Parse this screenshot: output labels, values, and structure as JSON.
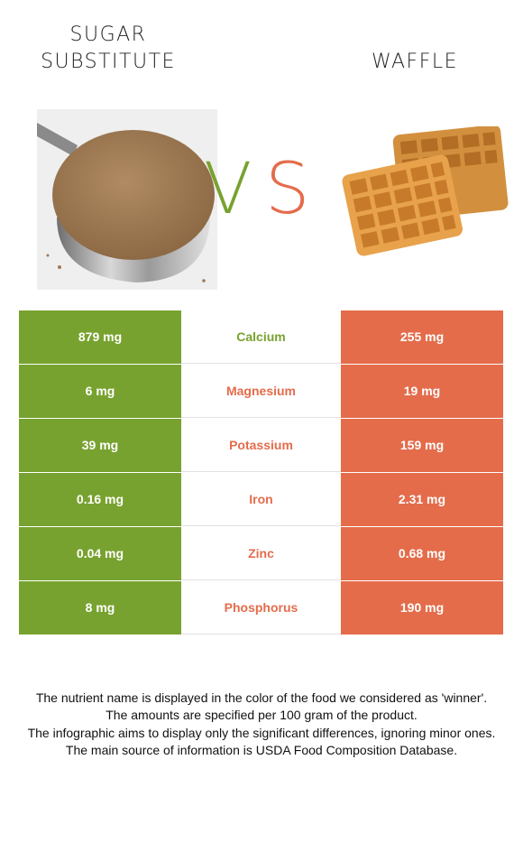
{
  "left_food": {
    "title_line1": "SUGAR",
    "title_line2": "SUBSTITUTE"
  },
  "right_food": {
    "title": "WAFFLE"
  },
  "vs": {
    "v": "V",
    "s": "S"
  },
  "colors": {
    "left_winner": "#78a22f",
    "right_winner": "#e46c4b"
  },
  "nutrients": [
    {
      "name": "Calcium",
      "left": "879 mg",
      "right": "255 mg",
      "winner": "left"
    },
    {
      "name": "Magnesium",
      "left": "6 mg",
      "right": "19 mg",
      "winner": "right"
    },
    {
      "name": "Potassium",
      "left": "39 mg",
      "right": "159 mg",
      "winner": "right"
    },
    {
      "name": "Iron",
      "left": "0.16 mg",
      "right": "2.31 mg",
      "winner": "right"
    },
    {
      "name": "Zinc",
      "left": "0.04 mg",
      "right": "0.68 mg",
      "winner": "right"
    },
    {
      "name": "Phosphorus",
      "left": "8 mg",
      "right": "190 mg",
      "winner": "right"
    }
  ],
  "footer": {
    "line1": "The nutrient name is displayed in the color of the food we considered as 'winner'.",
    "line2": "The amounts are specified per 100 gram of the product.",
    "line3": "The infographic aims to display only the significant differences, ignoring minor ones.",
    "line4": "The main source of information is USDA Food Composition Database."
  }
}
